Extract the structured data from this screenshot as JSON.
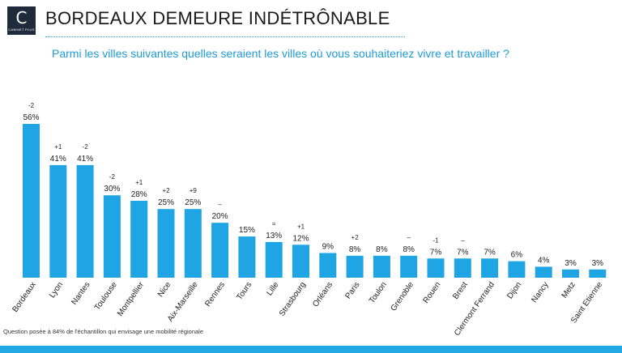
{
  "logo": {
    "letter": "C",
    "caption": "CABINET PLUS"
  },
  "header": {
    "title": "BORDEAUX DEMEURE INDÉTRÔNABLE",
    "subtitle": "Parmi les villes suivantes quelles seraient les villes où vous souhaiteriez vivre et travailler ?"
  },
  "footnote": "Question posée à 84% de l'échantillon qui envisage une mobilité régionale",
  "colors": {
    "bar": "#1fa5e4",
    "accent": "#22a8e2",
    "text": "#222222"
  },
  "chart_data": {
    "type": "bar",
    "categories": [
      "Bordeaux",
      "Lyon",
      "Nantes",
      "Toulouse",
      "Montpellier",
      "Nice",
      "Aix-Marseille",
      "Rennes",
      "Tours",
      "Lille",
      "Strasbourg",
      "Orléans",
      "Paris",
      "Toulon",
      "Grenoble",
      "Rouen",
      "Brest",
      "Clermont Ferrand",
      "Dijon",
      "Nancy",
      "Metz",
      "Saint Etienne"
    ],
    "values": [
      56,
      41,
      41,
      30,
      28,
      25,
      25,
      20,
      15,
      13,
      12,
      9,
      8,
      8,
      8,
      7,
      7,
      7,
      6,
      4,
      3,
      3
    ],
    "value_labels": [
      "56%",
      "41%",
      "41%",
      "30%",
      "28%",
      "25%",
      "25%",
      "20%",
      "15%",
      "13%",
      "12%",
      "9%",
      "8%",
      "8%",
      "8%",
      "7%",
      "7%",
      "7%",
      "6%",
      "4%",
      "3%",
      "3%"
    ],
    "changes": [
      "-2",
      "+1",
      "-2",
      "-2",
      "+1",
      "+2",
      "+9",
      "–",
      "",
      "=",
      "+1",
      "",
      "+2",
      "",
      "–",
      "-1",
      "–",
      "",
      "",
      "",
      "",
      ""
    ],
    "ylim": [
      0,
      56
    ]
  }
}
